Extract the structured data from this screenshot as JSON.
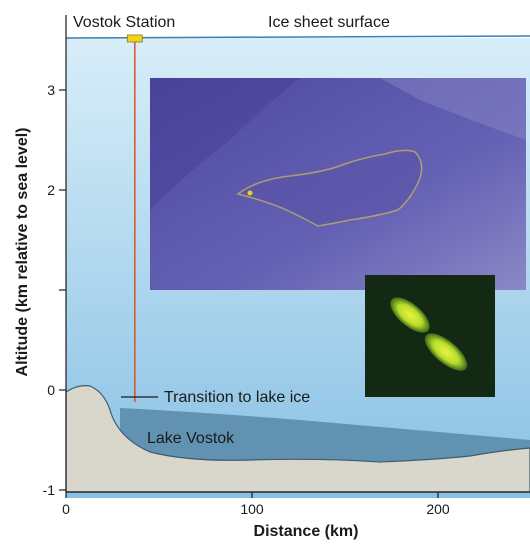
{
  "labels": {
    "station": "Vostok Station",
    "surface": "Ice sheet surface",
    "transition": "Transition to lake ice",
    "lake": "Lake Vostok"
  },
  "chart_data": {
    "type": "diagram",
    "xlabel": "Distance (km)",
    "ylabel": "Altitude (km relative to sea level)",
    "xlim": [
      -2,
      250
    ],
    "ylim": [
      -1,
      3.5
    ],
    "x_ticks": [
      {
        "value": 0,
        "label": "0"
      },
      {
        "value": 100,
        "label": "100"
      },
      {
        "value": 200,
        "label": "200"
      }
    ],
    "y_ticks": [
      {
        "value": 3,
        "label": "3"
      },
      {
        "value": 2,
        "label": "2"
      },
      {
        "value": 1,
        "label": ""
      },
      {
        "value": 0,
        "label": "0"
      },
      {
        "value": -1,
        "label": "-1"
      }
    ],
    "ice_surface_altitude_km": 3.5,
    "station_distance_km": 37,
    "transition_altitude_km": -0.07
  },
  "colors": {
    "ice_top": "#cde6f4",
    "ice_bottom": "#8fc3e6",
    "lake": "#5f8fae",
    "bedrock": "#d9d7cc",
    "borehole": "#d9532b",
    "station_marker": "#f2d21c",
    "lake_outline": "#e0c84a",
    "satellite": "#5a54a8",
    "micrograph_bg": "#142914",
    "microbe": "#b6dd2c"
  }
}
